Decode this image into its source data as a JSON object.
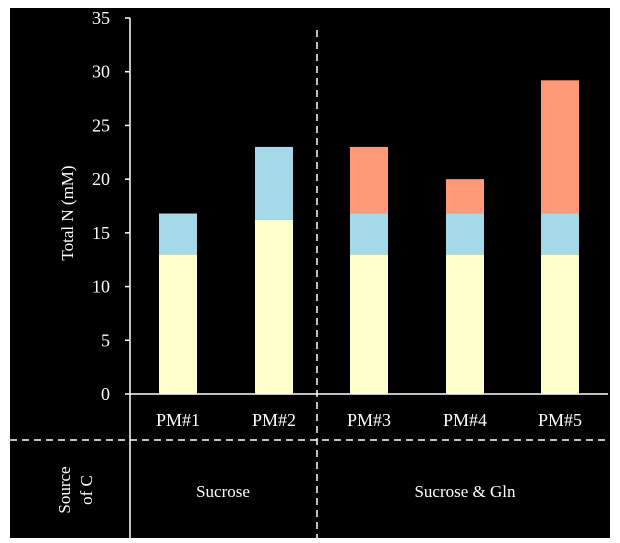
{
  "chart_data": {
    "type": "bar",
    "stacked": true,
    "categories": [
      "PM#1",
      "PM#2",
      "PM#3",
      "PM#4",
      "PM#5"
    ],
    "series": [
      {
        "values": [
          13,
          16.2,
          13,
          13,
          13
        ],
        "color": "#FFFFCC"
      },
      {
        "values": [
          3.8,
          6.8,
          3.8,
          3.8,
          3.8
        ],
        "color": "#A6D9E8"
      },
      {
        "values": [
          0,
          0,
          6.2,
          3.2,
          12.4
        ],
        "color": "#FF9977"
      }
    ],
    "ylabel": "Total N (mM)",
    "ylim": [
      0,
      35
    ],
    "yticks": [
      0,
      5,
      10,
      15,
      20,
      25,
      30,
      35
    ],
    "grid": false,
    "legend": "none"
  },
  "source_row": {
    "label_line1": "Source",
    "label_line2": "of C",
    "groups": [
      {
        "label": "Sucrose",
        "categories": [
          "PM#1",
          "PM#2"
        ]
      },
      {
        "label": "Sucrose & Gln",
        "categories": [
          "PM#3",
          "PM#4",
          "PM#5"
        ]
      }
    ]
  },
  "colors": {
    "background": "#000000",
    "foreground": "#FFFFFF"
  }
}
